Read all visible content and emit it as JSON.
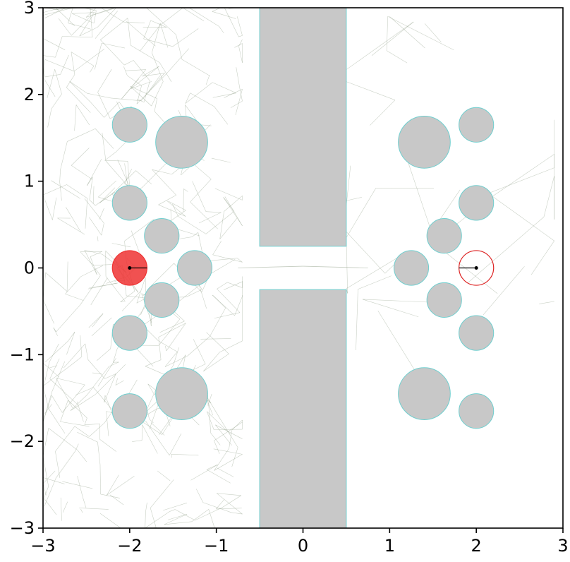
{
  "chart_data": {
    "type": "scatter",
    "title": "",
    "xlabel": "",
    "ylabel": "",
    "xlim": [
      -3,
      3
    ],
    "ylim": [
      -3,
      3
    ],
    "x_ticks": [
      "−3",
      "−2",
      "−1",
      "0",
      "1",
      "2",
      "3"
    ],
    "y_ticks": [
      "−3",
      "−2",
      "−1",
      "0",
      "1",
      "2",
      "3"
    ],
    "x_tick_values": [
      -3,
      -2,
      -1,
      0,
      1,
      2,
      3
    ],
    "y_tick_values": [
      -3,
      -2,
      -1,
      0,
      1,
      2,
      3
    ],
    "grid": false,
    "colors": {
      "obstacle_fill": "#c8c8c8",
      "obstacle_edge": "#6fcfcf",
      "robot_fill": "#ee3333",
      "goal_edge": "#dd2222",
      "tree_edge": "#8a9a80"
    },
    "walls": [
      {
        "x": [
          -0.5,
          0.5
        ],
        "y": [
          0.25,
          3.0
        ]
      },
      {
        "x": [
          -0.5,
          0.5
        ],
        "y": [
          -3.0,
          -0.25
        ]
      }
    ],
    "circle_obstacles": [
      {
        "x": -2.0,
        "y": 1.65,
        "r": 0.2
      },
      {
        "x": -1.4,
        "y": 1.45,
        "r": 0.3
      },
      {
        "x": -2.0,
        "y": 0.75,
        "r": 0.2
      },
      {
        "x": -1.63,
        "y": 0.37,
        "r": 0.2
      },
      {
        "x": -1.25,
        "y": 0.0,
        "r": 0.2
      },
      {
        "x": -1.63,
        "y": -0.37,
        "r": 0.2
      },
      {
        "x": -2.0,
        "y": -0.75,
        "r": 0.2
      },
      {
        "x": -1.4,
        "y": -1.45,
        "r": 0.3
      },
      {
        "x": -2.0,
        "y": -1.65,
        "r": 0.2
      },
      {
        "x": 2.0,
        "y": 1.65,
        "r": 0.2
      },
      {
        "x": 1.4,
        "y": 1.45,
        "r": 0.3
      },
      {
        "x": 2.0,
        "y": 0.75,
        "r": 0.2
      },
      {
        "x": 1.63,
        "y": 0.37,
        "r": 0.2
      },
      {
        "x": 1.25,
        "y": 0.0,
        "r": 0.2
      },
      {
        "x": 1.63,
        "y": -0.37,
        "r": 0.2
      },
      {
        "x": 2.0,
        "y": -0.75,
        "r": 0.2
      },
      {
        "x": 1.4,
        "y": -1.45,
        "r": 0.3
      },
      {
        "x": 2.0,
        "y": -1.65,
        "r": 0.2
      }
    ],
    "robot": {
      "x": -2.0,
      "y": 0.0,
      "r": 0.2,
      "heading_deg": 0
    },
    "goal": {
      "x": 2.0,
      "y": 0.0,
      "r": 0.2,
      "heading_deg": 180
    },
    "tree_regions": [
      {
        "x": [
          -3.0,
          -0.7
        ],
        "y": [
          -3.0,
          3.0
        ],
        "segments": 520
      },
      {
        "x": [
          0.5,
          2.9
        ],
        "y": [
          -1.2,
          2.9
        ],
        "segments": 40
      }
    ],
    "tree_path": [
      {
        "x": -0.75,
        "y": 0.0
      },
      {
        "x": 0.0,
        "y": 0.02
      },
      {
        "x": 0.75,
        "y": 0.0
      }
    ]
  }
}
